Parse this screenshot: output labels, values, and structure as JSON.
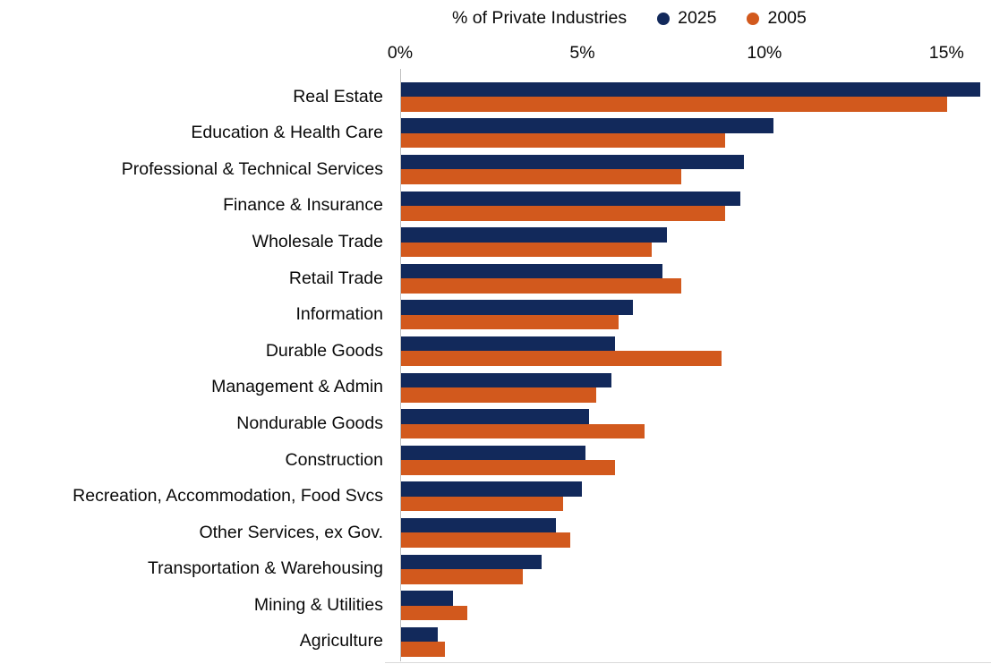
{
  "legend": {
    "title": "% of Private Industries",
    "series": [
      {
        "label": "2025",
        "color": "#12295B"
      },
      {
        "label": "2005",
        "color": "#D2591D"
      }
    ]
  },
  "axis": {
    "ticks": [
      "0%",
      "5%",
      "10%",
      "15%"
    ],
    "tick_values": [
      0,
      5,
      10,
      15
    ]
  },
  "chart_data": {
    "type": "bar",
    "orientation": "horizontal",
    "title": "% of Private Industries",
    "xlabel": "% of Private Industries",
    "ylabel": "",
    "xlim": [
      0,
      16
    ],
    "x_ticks": [
      0,
      5,
      10,
      15
    ],
    "grid": false,
    "legend_position": "top",
    "categories": [
      "Real Estate",
      "Education & Health Care",
      "Professional & Technical Services",
      "Finance & Insurance",
      "Wholesale Trade",
      "Retail Trade",
      "Information",
      "Durable Goods",
      "Management & Admin",
      "Nondurable Goods",
      "Construction",
      "Recreation, Accommodation, Food Svcs",
      "Other Services, ex Gov.",
      "Transportation & Warehousing",
      "Mining  & Utilities",
      "Agriculture"
    ],
    "series": [
      {
        "name": "2025",
        "color": "#12295B",
        "values": [
          15.7,
          10.1,
          9.3,
          9.2,
          7.2,
          7.1,
          6.3,
          5.8,
          5.7,
          5.1,
          5.0,
          4.9,
          4.2,
          3.8,
          1.4,
          1.0
        ]
      },
      {
        "name": "2005",
        "color": "#D2591D",
        "values": [
          14.8,
          8.8,
          7.6,
          8.8,
          6.8,
          7.6,
          5.9,
          8.7,
          5.3,
          6.6,
          5.8,
          4.4,
          4.6,
          3.3,
          1.8,
          1.2
        ]
      }
    ]
  }
}
